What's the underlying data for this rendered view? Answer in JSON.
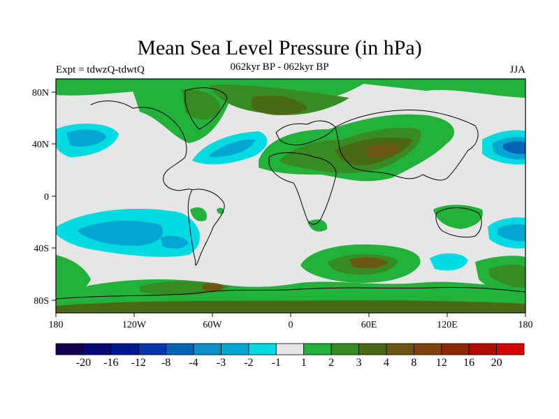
{
  "title": "Mean Sea Level Pressure (in hPa)",
  "left_subtitle": "Expt = tdwzQ-tdwtQ",
  "center_subtitle": "062kyr BP - 062kyr BP",
  "right_subtitle": "JJA",
  "lat_labels": [
    "80N",
    "40N",
    "0",
    "40S",
    "80S"
  ],
  "lon_labels": [
    "180",
    "120W",
    "60W",
    "0",
    "60E",
    "120E",
    "180"
  ],
  "colorbar": {
    "colors": [
      "#13004e",
      "#040a74",
      "#03188f",
      "#0335a4",
      "#0563b5",
      "#0c8fc8",
      "#03a6d0",
      "#00dae1",
      "#e6e6e6",
      "#22b13a",
      "#388a22",
      "#4a6914",
      "#6b5614",
      "#81420f",
      "#8f2705",
      "#b10a05",
      "#d50404"
    ],
    "labels": [
      "-20",
      "-16",
      "-12",
      "-8",
      "-4",
      "-3",
      "-2",
      "-1",
      "1",
      "2",
      "3",
      "4",
      "8",
      "12",
      "16",
      "20"
    ]
  }
}
